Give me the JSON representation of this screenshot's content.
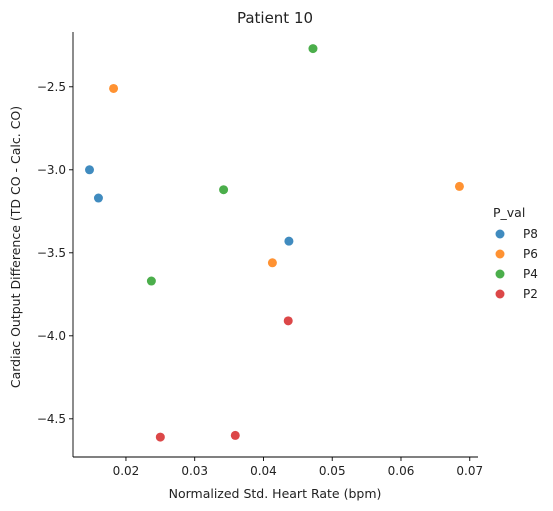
{
  "chart_data": {
    "type": "scatter",
    "title": "Patient 10",
    "xlabel": "Normalized Std. Heart Rate (bpm)",
    "ylabel": "Cardiac Output Difference (TD CO - Calc. CO)",
    "xlim": [
      0.0123,
      0.0712
    ],
    "ylim": [
      -4.73,
      -2.17
    ],
    "xticks": [
      0.02,
      0.03,
      0.04,
      0.05,
      0.06,
      0.07
    ],
    "xtick_labels": [
      "0.02",
      "0.03",
      "0.04",
      "0.05",
      "0.06",
      "0.07"
    ],
    "yticks": [
      -4.5,
      -4.0,
      -3.5,
      -3.0,
      -2.5
    ],
    "ytick_labels": [
      "−4.5",
      "−4.0",
      "−3.5",
      "−3.0",
      "−2.5"
    ],
    "grid": false,
    "legend": {
      "title": "P_val",
      "placement": "right",
      "entries": [
        "P8",
        "P6",
        "P4",
        "P2"
      ]
    },
    "series": [
      {
        "name": "P8",
        "color": "#1f77b4",
        "points": [
          [
            0.0147,
            -3.0
          ],
          [
            0.016,
            -3.17
          ],
          [
            0.0437,
            -3.43
          ]
        ]
      },
      {
        "name": "P6",
        "color": "#ff7f0e",
        "points": [
          [
            0.0182,
            -2.51
          ],
          [
            0.0413,
            -3.56
          ],
          [
            0.0685,
            -3.1
          ]
        ]
      },
      {
        "name": "P4",
        "color": "#2ca02c",
        "points": [
          [
            0.0472,
            -2.27
          ],
          [
            0.0342,
            -3.12
          ],
          [
            0.0237,
            -3.67
          ]
        ]
      },
      {
        "name": "P2",
        "color": "#d62728",
        "points": [
          [
            0.0436,
            -3.91
          ],
          [
            0.025,
            -4.61
          ],
          [
            0.0359,
            -4.6
          ]
        ]
      }
    ]
  }
}
